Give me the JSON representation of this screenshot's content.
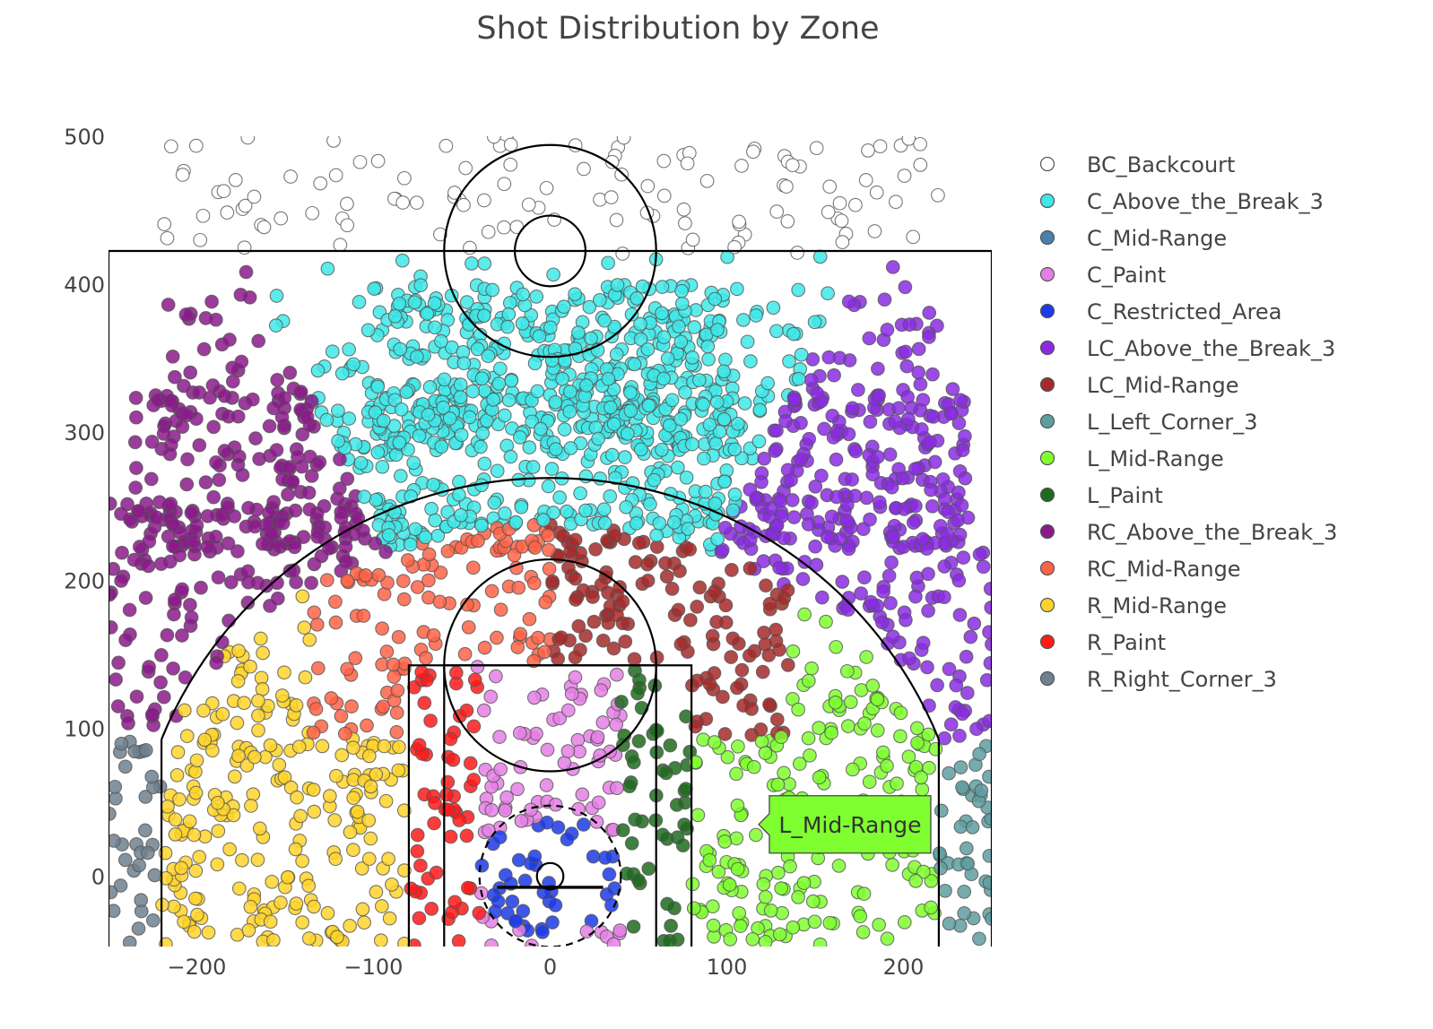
{
  "chart_data": {
    "type": "scatter",
    "title": "Shot Distribution by Zone",
    "xlabel": "",
    "ylabel": "",
    "xlim": [
      -250,
      250
    ],
    "ylim": [
      -47.5,
      500
    ],
    "x_ticks": [
      -200,
      -100,
      0,
      100,
      200
    ],
    "x_tick_labels": [
      "−200",
      "−100",
      "0",
      "100",
      "200"
    ],
    "y_ticks": [
      0,
      100,
      200,
      300,
      400,
      500
    ],
    "y_tick_labels": [
      "0",
      "100",
      "200",
      "300",
      "400",
      "500"
    ],
    "grid": false,
    "legend_position": "right",
    "series": [
      {
        "name": "BC_Backcourt",
        "color": "#ffffff",
        "region": "backcourt"
      },
      {
        "name": "C_Above_the_Break_3",
        "color": "#3fe8e8",
        "region": "c_above_3"
      },
      {
        "name": "C_Mid-Range",
        "color": "#4a7fae",
        "region": "c_mid"
      },
      {
        "name": "C_Paint",
        "color": "#e57fe5",
        "region": "c_paint"
      },
      {
        "name": "C_Restricted_Area",
        "color": "#1c3ae8",
        "region": "restricted"
      },
      {
        "name": "LC_Above_the_Break_3",
        "color": "#8a2be2",
        "region": "lc_above_3"
      },
      {
        "name": "LC_Mid-Range",
        "color": "#a52a2a",
        "region": "lc_mid"
      },
      {
        "name": "L_Left_Corner_3",
        "color": "#5f9ea0",
        "region": "left_corner"
      },
      {
        "name": "L_Mid-Range",
        "color": "#7fff2f",
        "region": "l_mid"
      },
      {
        "name": "L_Paint",
        "color": "#1e6b1e",
        "region": "l_paint"
      },
      {
        "name": "RC_Above_the_Break_3",
        "color": "#8b1a8b",
        "region": "rc_above_3"
      },
      {
        "name": "RC_Mid-Range",
        "color": "#ff6347",
        "region": "rc_mid"
      },
      {
        "name": "R_Mid-Range",
        "color": "#ffd42a",
        "region": "r_mid"
      },
      {
        "name": "R_Paint",
        "color": "#ff1a1a",
        "region": "r_paint"
      },
      {
        "name": "R_Right_Corner_3",
        "color": "#6f808f",
        "region": "right_corner"
      }
    ],
    "hover_label": {
      "text": "L_Mid-Range",
      "x": 118,
      "y": 35,
      "color": "#7fff2f"
    }
  }
}
